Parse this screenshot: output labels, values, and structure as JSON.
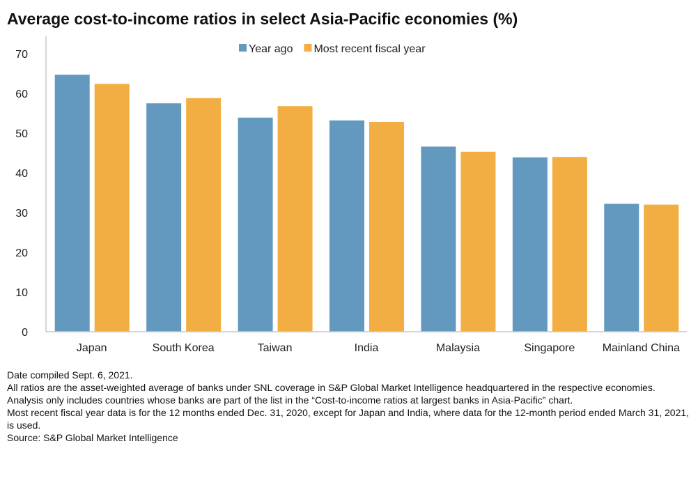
{
  "title": "Average cost-to-income ratios in select Asia-Pacific economies (%)",
  "chart_data": {
    "type": "bar",
    "categories": [
      "Japan",
      "South Korea",
      "Taiwan",
      "India",
      "Malaysia",
      "Singapore",
      "Mainland China"
    ],
    "series": [
      {
        "name": "Year ago",
        "color": "#6399bf",
        "values": [
          64.7,
          57.5,
          53.9,
          53.2,
          46.6,
          43.9,
          32.2
        ]
      },
      {
        "name": "Most recent fiscal year",
        "color": "#f2ae42",
        "values": [
          62.4,
          58.8,
          56.8,
          52.8,
          45.3,
          44.0,
          32.0
        ]
      }
    ],
    "ylim": [
      0,
      70
    ],
    "yticks": [
      "0",
      "10",
      "20",
      "30",
      "40",
      "50",
      "60",
      "70"
    ],
    "grid": false,
    "legend": "top-center"
  },
  "notes": [
    "Date compiled Sept. 6, 2021.",
    "All ratios are the asset-weighted average of banks under SNL coverage in S&P Global Market Intelligence headquartered in the respective economies.",
    "Analysis only includes countries whose banks are part of the list in the “Cost-to-income ratios at largest banks in Asia-Pacific” chart.",
    "Most recent fiscal year data is for the 12 months ended Dec. 31, 2020, except for Japan and India, where data for the 12-month period ended March 31, 2021, is used.",
    "Source: S&P Global Market Intelligence"
  ]
}
